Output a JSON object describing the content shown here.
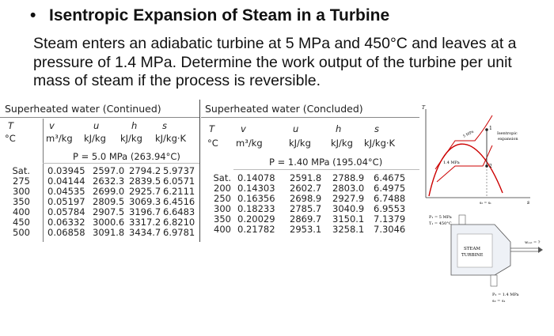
{
  "title": {
    "bullet": "•",
    "text": "Isentropic Expansion of Steam in a Turbine"
  },
  "problem": "Steam enters an adiabatic turbine at 5 MPa and 450°C and leaves at a pressure of 1.4 MPa. Determine the work output of the turbine per unit mass of steam if the process is reversible.",
  "table_left": {
    "header": "Superheated water (Continued)",
    "columns": [
      "T",
      "v",
      "u",
      "h",
      "s"
    ],
    "units": [
      "°C",
      "m³/kg",
      "kJ/kg",
      "kJ/kg",
      "kJ/kg·K"
    ],
    "pressure": "P = 5.0 MPa (263.94°C)",
    "rows": [
      [
        "Sat.",
        "0.03945",
        "2597.0",
        "2794.2",
        "5.9737"
      ],
      [
        "275",
        "0.04144",
        "2632.3",
        "2839.5",
        "6.0571"
      ],
      [
        "300",
        "0.04535",
        "2699.0",
        "2925.7",
        "6.2111"
      ],
      [
        "350",
        "0.05197",
        "2809.5",
        "3069.3",
        "6.4516"
      ],
      [
        "400",
        "0.05784",
        "2907.5",
        "3196.7",
        "6.6483"
      ],
      [
        "450",
        "0.06332",
        "3000.6",
        "3317.2",
        "6.8210"
      ],
      [
        "500",
        "0.06858",
        "3091.8",
        "3434.7",
        "6.9781"
      ]
    ]
  },
  "table_right": {
    "header": "Superheated water (Concluded)",
    "columns": [
      "T",
      "v",
      "u",
      "h",
      "s"
    ],
    "units": [
      "°C",
      "m³/kg",
      "kJ/kg",
      "kJ/kg",
      "kJ/kg·K"
    ],
    "pressure": "P = 1.40 MPa (195.04°C)",
    "rows": [
      [
        "Sat.",
        "0.14078",
        "2591.8",
        "2788.9",
        "6.4675"
      ],
      [
        "200",
        "0.14303",
        "2602.7",
        "2803.0",
        "6.4975"
      ],
      [
        "250",
        "0.16356",
        "2698.9",
        "2927.9",
        "6.7488"
      ],
      [
        "300",
        "0.18233",
        "2785.7",
        "3040.9",
        "6.9553"
      ],
      [
        "350",
        "0.20029",
        "2869.7",
        "3150.1",
        "7.1379"
      ],
      [
        "400",
        "0.21782",
        "2953.1",
        "3258.1",
        "7.3046"
      ]
    ]
  },
  "diagram": {
    "t_axis": "T",
    "s_axis": "s",
    "iso_high": "5 MPa",
    "iso_low": "1.4 MPa",
    "state1": "1",
    "state2": "2",
    "s_equal": "s₂ = s₁",
    "note1": "Isentropic",
    "note2": "expansion",
    "inlet1": "P₁ = 5 MPa",
    "inlet2": "T₁ = 450°C",
    "turbine1": "STEAM",
    "turbine2": "TURBINE",
    "work": "wₒᵤₜ = ?",
    "outlet1": "P₂ = 1.4 MPa",
    "outlet2": "s₂ = s₁"
  }
}
